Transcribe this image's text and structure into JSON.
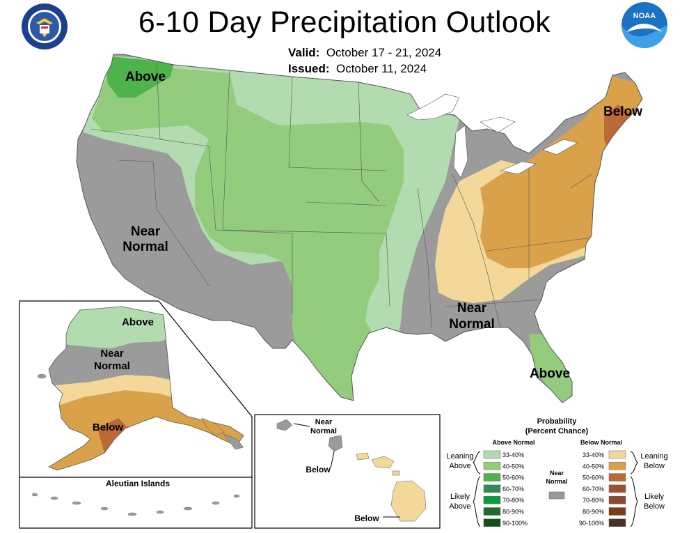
{
  "title": "6-10 Day Precipitation Outlook",
  "valid_label": "Valid:",
  "valid_value": "October 17 - 21, 2024",
  "issued_label": "Issued:",
  "issued_value": "October 11, 2024",
  "logos": {
    "left": "department-of-commerce-seal",
    "left_text": "DEPARTMENT OF COMMERCE · UNITED STATES OF AMERICA",
    "right": "noaa-logo",
    "right_text": "NOAA"
  },
  "map_labels": {
    "northwest": "Above",
    "west_line1": "Near",
    "west_line2": "Normal",
    "northeast": "Below",
    "southeast_line1": "Near",
    "southeast_line2": "Normal",
    "florida": "Above"
  },
  "alaska": {
    "north": "Above",
    "middle_line1": "Near",
    "middle_line2": "Normal",
    "south": "Below",
    "aleutian_title": "Aleutian Islands"
  },
  "hawaii": {
    "near_line1": "Near",
    "near_line2": "Normal",
    "below_1": "Below",
    "below_2": "Below"
  },
  "legend": {
    "title_line1": "Probability",
    "title_line2": "(Percent Chance)",
    "above_header": "Above Normal",
    "below_header": "Below Normal",
    "near_line1": "Near",
    "near_line2": "Normal",
    "leaning_above_1": "Leaning",
    "leaning_above_2": "Above",
    "likely_above_1": "Likely",
    "likely_above_2": "Above",
    "leaning_below_1": "Leaning",
    "leaning_below_2": "Below",
    "likely_below_1": "Likely",
    "likely_below_2": "Below",
    "above_rows": [
      {
        "label": "33-40%",
        "color": "#b2dbb0"
      },
      {
        "label": "40-50%",
        "color": "#94cc7e"
      },
      {
        "label": "50-60%",
        "color": "#4db34a"
      },
      {
        "label": "60-70%",
        "color": "#2e8b57"
      },
      {
        "label": "70-80%",
        "color": "#0a9b3c"
      },
      {
        "label": "80-90%",
        "color": "#1e6b2e"
      },
      {
        "label": "90-100%",
        "color": "#164d1a"
      }
    ],
    "below_rows": [
      {
        "label": "33-40%",
        "color": "#f3d89a"
      },
      {
        "label": "40-50%",
        "color": "#d9a14a"
      },
      {
        "label": "50-60%",
        "color": "#bb6a37"
      },
      {
        "label": "60-70%",
        "color": "#9b5233"
      },
      {
        "label": "70-80%",
        "color": "#8b4a2e"
      },
      {
        "label": "80-90%",
        "color": "#7a3d15"
      },
      {
        "label": "90-100%",
        "color": "#4a3028"
      }
    ],
    "near_color": "#9b9b9b"
  }
}
